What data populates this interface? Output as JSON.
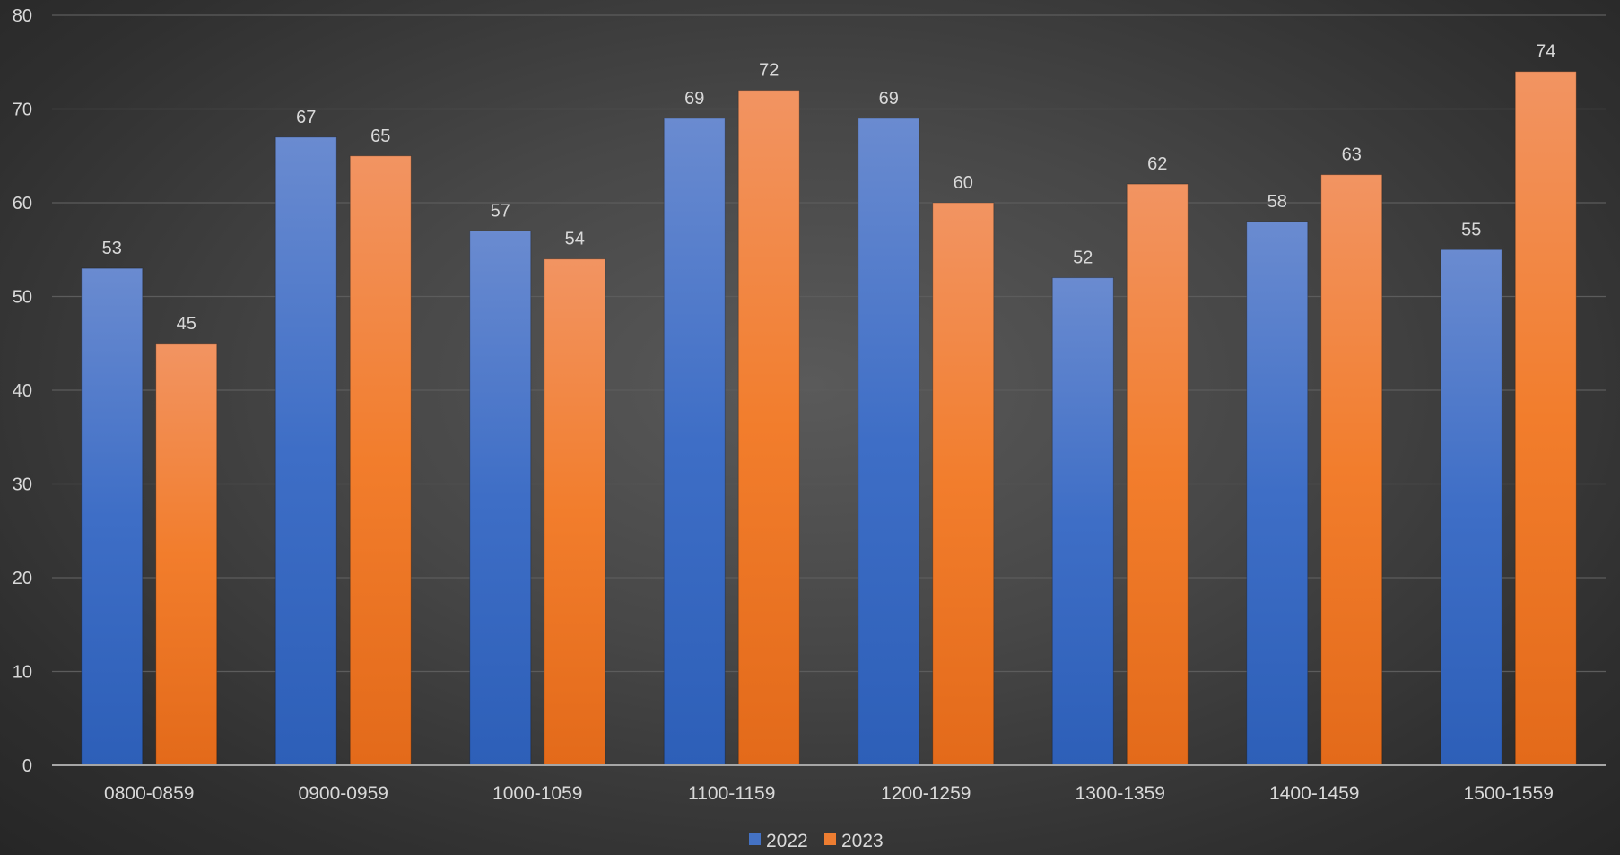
{
  "chart_data": {
    "type": "bar",
    "title": "",
    "xlabel": "",
    "ylabel": "",
    "categories": [
      "0800-0859",
      "0900-0959",
      "1000-1059",
      "1100-1159",
      "1200-1259",
      "1300-1359",
      "1400-1459",
      "1500-1559"
    ],
    "series": [
      {
        "name": "2022",
        "values": [
          53,
          67,
          57,
          69,
          69,
          52,
          58,
          55
        ],
        "color": "#4472C4"
      },
      {
        "name": "2023",
        "values": [
          45,
          65,
          54,
          72,
          60,
          62,
          63,
          74
        ],
        "color": "#ED7D31"
      }
    ],
    "ylim": [
      0,
      80
    ],
    "yticks": [
      0,
      10,
      20,
      30,
      40,
      50,
      60,
      70,
      80
    ],
    "grid": true,
    "data_labels": true,
    "legend_position": "bottom"
  }
}
